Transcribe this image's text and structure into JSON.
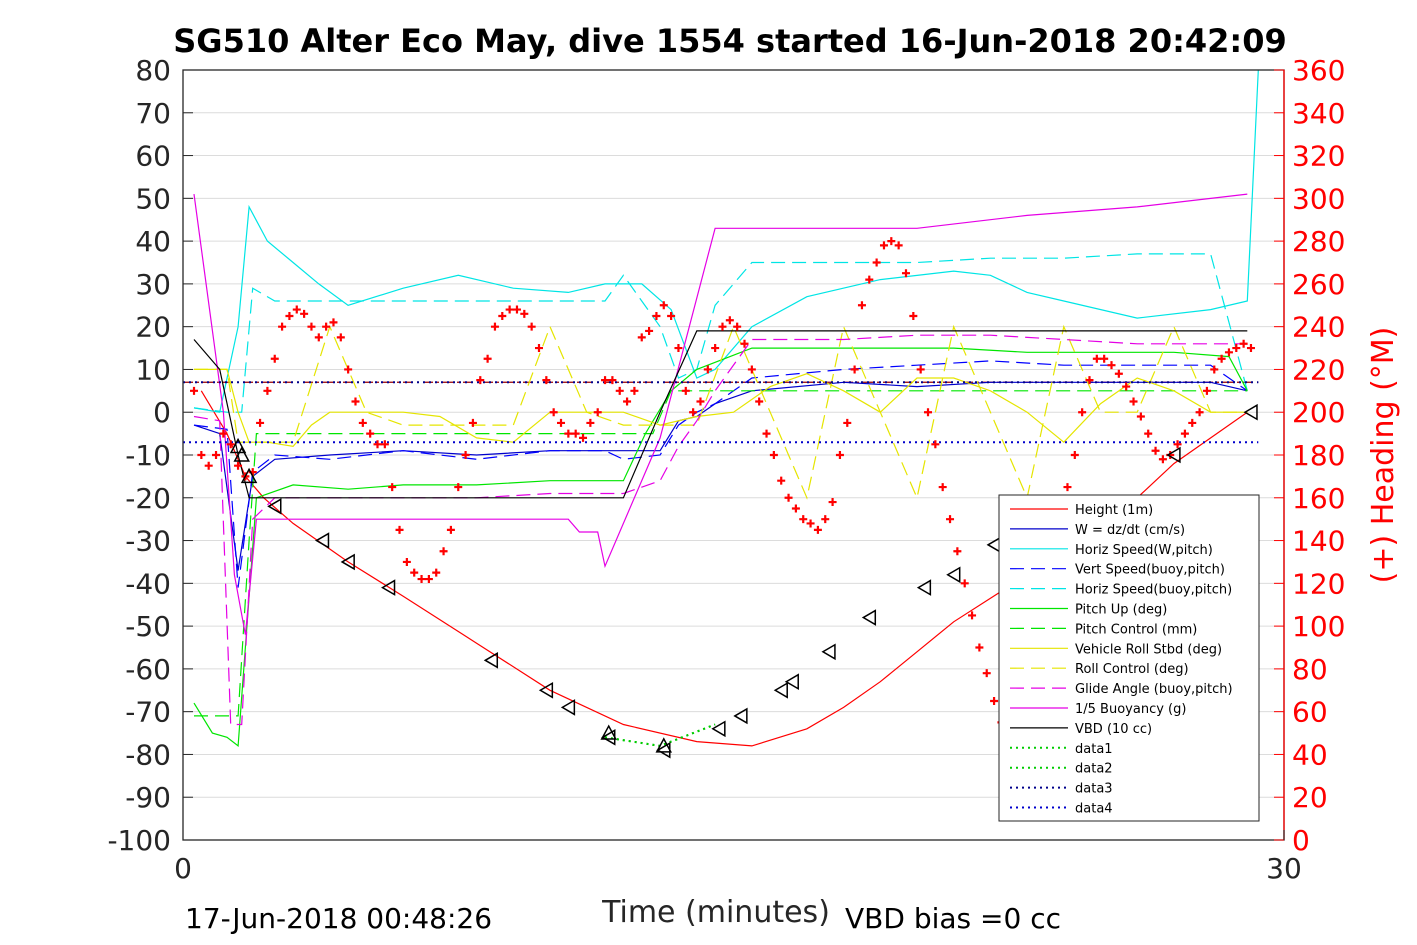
{
  "chart_data": {
    "type": "line",
    "title": "SG510 Alter Eco May, dive 1554 started 16-Jun-2018 20:42:09",
    "xlabel": "Time (minutes)",
    "ylabel_right": "(+) Heading (°M)",
    "xlim": [
      0,
      30
    ],
    "ylim": [
      -100,
      80
    ],
    "ylim_right": [
      0,
      360
    ],
    "x_ticks": [
      "0",
      "30"
    ],
    "y_ticks": [
      "80",
      "70",
      "60",
      "50",
      "40",
      "30",
      "20",
      "10",
      "0",
      "-10",
      "-20",
      "-30",
      "-40",
      "-50",
      "-60",
      "-70",
      "-80",
      "-90",
      "-100"
    ],
    "y_ticks_right": [
      "360",
      "340",
      "320",
      "300",
      "280",
      "260",
      "240",
      "220",
      "200",
      "180",
      "160",
      "140",
      "120",
      "100",
      "80",
      "60",
      "40",
      "20",
      "0"
    ],
    "footer_left": "17-Jun-2018 00:48:26",
    "footer_right": "VBD bias =0 cc",
    "grid": "horizontal",
    "legend_position": "bottom-right",
    "series": [
      {
        "name": "Height (1m)",
        "color": "#ff0000",
        "style": "solid",
        "x": [
          0.5,
          1.2,
          1.7,
          2.2,
          3.0,
          4.5,
          6.0,
          8.0,
          10.0,
          12.0,
          14.0,
          15.5,
          17.0,
          18.0,
          19.0,
          20.0,
          21.0,
          23.0,
          25.0,
          27.0,
          29.0
        ],
        "y": [
          5,
          -5,
          -15,
          -20,
          -26,
          -35,
          -43,
          -54,
          -65,
          -73,
          -77,
          -78,
          -74,
          -69,
          -63,
          -56,
          -49,
          -38,
          -28,
          -12,
          0
        ]
      },
      {
        "name": "W = dz/dt (cm/s)",
        "color": "#0000cc",
        "style": "solid",
        "x": [
          0.3,
          1.0,
          1.5,
          1.9,
          2.5,
          4.0,
          6.0,
          8.0,
          10.0,
          11.5,
          12.0,
          13.0,
          13.5,
          14.0,
          14.5,
          15.5,
          18.0,
          20.0,
          22.0,
          24.0,
          26.0,
          28.0,
          29.0
        ],
        "y": [
          -3,
          -5,
          -37,
          -15,
          -11,
          -10,
          -9,
          -10,
          -9,
          -9,
          -9,
          -9,
          -2,
          -1,
          2,
          5,
          7,
          6,
          7,
          7,
          7,
          7,
          5
        ]
      },
      {
        "name": "Horiz Speed(W,pitch)",
        "color": "#00e5e5",
        "style": "solid",
        "x": [
          0.3,
          1.0,
          1.5,
          1.8,
          2.3,
          3.0,
          3.7,
          4.5,
          6.0,
          7.5,
          9.0,
          10.5,
          11.5,
          12.5,
          13.3,
          14.0,
          14.5,
          15.5,
          17.0,
          19.0,
          21.0,
          22.0,
          23.0,
          24.0,
          26.0,
          28.0,
          29.0,
          29.3
        ],
        "y": [
          1,
          0,
          20,
          48,
          40,
          35,
          30,
          25,
          29,
          32,
          29,
          28,
          30,
          30,
          24,
          8,
          10,
          20,
          27,
          31,
          33,
          32,
          28,
          26,
          22,
          24,
          26,
          80
        ]
      },
      {
        "name": "Vert Speed(buoy,pitch)",
        "color": "#0000ff",
        "style": "dashed",
        "x": [
          0.3,
          1.2,
          1.5,
          1.9,
          2.5,
          4.0,
          6.0,
          8.0,
          10.0,
          11.5,
          12.0,
          13.0,
          13.5,
          14.0,
          14.5,
          15.5,
          18.0,
          20.0,
          22.0,
          24.0,
          26.0,
          28.0,
          29.0
        ],
        "y": [
          -3,
          -4,
          -41,
          -14,
          -10,
          -11,
          -9,
          -11,
          -9,
          -9,
          -11,
          -10,
          -3,
          0,
          2,
          8,
          10,
          11,
          12,
          11,
          11,
          11,
          5
        ]
      },
      {
        "name": "Horiz Speed(buoy,pitch)",
        "color": "#00e5e5",
        "style": "dashed",
        "x": [
          0.3,
          1.2,
          1.6,
          1.9,
          2.5,
          4.0,
          6.0,
          8.0,
          10.0,
          11.5,
          12.0,
          13.0,
          13.5,
          14.0,
          14.5,
          15.5,
          18.0,
          20.0,
          22.0,
          24.0,
          26.0,
          28.0,
          29.0
        ],
        "y": [
          1,
          0,
          0,
          29,
          26,
          26,
          26,
          26,
          26,
          26,
          32,
          20,
          8,
          10,
          25,
          35,
          35,
          35,
          36,
          36,
          37,
          37,
          5
        ]
      },
      {
        "name": "Pitch Up (deg)",
        "color": "#00e600",
        "style": "solid",
        "x": [
          0.3,
          0.8,
          1.2,
          1.5,
          2.0,
          3.0,
          4.5,
          6.0,
          8.0,
          10.0,
          11.5,
          12.0,
          12.6,
          13.3,
          14.0,
          15.5,
          17.0,
          19.0,
          21.0,
          23.0,
          25.0,
          27.0,
          28.5,
          29.0
        ],
        "y": [
          -68,
          -75,
          -76,
          -78,
          -20,
          -17,
          -18,
          -17,
          -17,
          -16,
          -16,
          -16,
          -5,
          5,
          10,
          15,
          15,
          15,
          15,
          14,
          14,
          14,
          13,
          5
        ]
      },
      {
        "name": "Pitch Control (mm)",
        "color": "#00e600",
        "style": "dashed",
        "x": [
          0.3,
          1.2,
          1.5,
          1.8,
          2.0,
          3.0,
          6.0,
          10.0,
          12.0,
          12.8,
          13.3,
          14.0,
          16.0,
          20.0,
          24.0,
          28.0,
          29.0
        ],
        "y": [
          -71,
          -71,
          -71,
          -30,
          -5,
          -5,
          -5,
          -5,
          -5,
          -5,
          5,
          5,
          5,
          5,
          5,
          5,
          5
        ]
      },
      {
        "name": "Vehicle Roll Stbd (deg)",
        "color": "#e5e500",
        "style": "solid",
        "x": [
          0.3,
          1.2,
          1.5,
          1.8,
          2.3,
          3.0,
          3.5,
          4.0,
          5.0,
          6.0,
          7.0,
          8.0,
          9.0,
          10.0,
          11.0,
          12.0,
          13.0,
          14.0,
          15.0,
          16.0,
          17.0,
          18.0,
          19.0,
          20.0,
          21.0,
          22.0,
          23.0,
          24.0,
          25.0,
          26.0,
          27.0,
          28.0,
          29.0
        ],
        "y": [
          10,
          10,
          0,
          -7,
          -7,
          -8,
          -3,
          0,
          0,
          0,
          -1,
          -6,
          -7,
          0,
          0,
          0,
          -3,
          -1,
          0,
          6,
          9,
          5,
          0,
          8,
          8,
          5,
          0,
          -7,
          2,
          8,
          5,
          0,
          0
        ]
      },
      {
        "name": "Roll Control (deg)",
        "color": "#e5e500",
        "style": "dashed",
        "x": [
          0.3,
          1.2,
          1.5,
          2.0,
          3.0,
          4.0,
          5.0,
          6.0,
          7.0,
          8.0,
          9.0,
          10.0,
          11.0,
          12.0,
          13.0,
          14.0,
          15.0,
          16.0,
          17.0,
          18.0,
          19.0,
          20.0,
          21.0,
          22.0,
          23.0,
          24.0,
          25.0,
          26.0,
          27.0,
          28.0,
          29.0
        ],
        "y": [
          10,
          10,
          -7,
          -7,
          -7,
          20,
          0,
          -3,
          -3,
          -3,
          -3,
          20,
          0,
          -3,
          -3,
          -3,
          20,
          0,
          -20,
          20,
          0,
          -20,
          20,
          0,
          -20,
          20,
          0,
          0,
          20,
          0,
          0
        ]
      },
      {
        "name": "Glide Angle (buoy,pitch)",
        "color": "#e500e5",
        "style": "dashed",
        "x": [
          0.3,
          1.0,
          1.3,
          1.6,
          1.9,
          2.5,
          4.0,
          6.0,
          8.0,
          10.0,
          11.5,
          12.0,
          13.0,
          13.5,
          14.0,
          14.5,
          15.5,
          18.0,
          20.0,
          22.0,
          24.0,
          26.0,
          28.0,
          29.0
        ],
        "y": [
          -1,
          -2,
          -73,
          -73,
          -25,
          -20,
          -20,
          -20,
          -20,
          -19,
          -19,
          -19,
          -16,
          -8,
          -2,
          5,
          17,
          17,
          18,
          18,
          17,
          16,
          16,
          16
        ]
      },
      {
        "name": "1/5 Buoyancy (g)",
        "color": "#e500e5",
        "style": "solid",
        "x": [
          0.3,
          1.1,
          1.4,
          1.7,
          2.0,
          3.0,
          5.0,
          8.0,
          9.0,
          10.5,
          10.8,
          11.3,
          11.5,
          13.0,
          14.5,
          15.5,
          17.0,
          20.0,
          23.0,
          26.0,
          29.0
        ],
        "y": [
          51,
          0,
          -38,
          -52,
          -25,
          -25,
          -25,
          -25,
          -25,
          -25,
          -28,
          -28,
          -36,
          -6,
          43,
          43,
          43,
          43,
          46,
          48,
          51
        ]
      },
      {
        "name": "VBD (10 cc)",
        "color": "#000000",
        "style": "solid",
        "x": [
          0.3,
          1.0,
          1.5,
          1.8,
          2.0,
          5.0,
          10.0,
          11.5,
          12.0,
          13.0,
          14.0,
          14.5,
          20.0,
          25.0,
          29.0
        ],
        "y": [
          17,
          10,
          -10,
          -20,
          -20,
          -20,
          -20,
          -20,
          -20,
          0,
          19,
          19,
          19,
          19,
          19
        ]
      },
      {
        "name": "data1",
        "color": "#00cc00",
        "style": "dotted",
        "x": [
          11.5,
          13.0,
          14.5
        ],
        "y": [
          -76,
          -78,
          -73
        ]
      },
      {
        "name": "data2",
        "color": "#00cc00",
        "style": "dotted",
        "x": [
          11.5,
          13.0,
          14.5
        ],
        "y": [
          -76,
          -78,
          -73
        ]
      },
      {
        "name": "data3",
        "color": "#00008b",
        "style": "dotted",
        "x": [
          0,
          29.3
        ],
        "y": [
          7,
          7
        ]
      },
      {
        "name": "data4",
        "color": "#0000cc",
        "style": "dotted",
        "x": [
          0,
          29.3
        ],
        "y": [
          -7,
          -7
        ]
      }
    ],
    "reference_lines": [
      {
        "color": "#990000",
        "style": "dashdot",
        "y": 7
      }
    ],
    "heading_points": {
      "color": "#ff0000",
      "marker": "+",
      "x": [
        0.3,
        0.5,
        0.7,
        0.9,
        1.1,
        1.3,
        1.5,
        1.7,
        1.9,
        2.1,
        2.3,
        2.5,
        2.7,
        2.9,
        3.1,
        3.3,
        3.5,
        3.7,
        3.9,
        4.1,
        4.3,
        4.5,
        4.7,
        4.9,
        5.1,
        5.3,
        5.5,
        5.7,
        5.9,
        6.1,
        6.3,
        6.5,
        6.7,
        6.9,
        7.1,
        7.3,
        7.5,
        7.7,
        7.9,
        8.1,
        8.3,
        8.5,
        8.7,
        8.9,
        9.1,
        9.3,
        9.5,
        9.7,
        9.9,
        10.1,
        10.3,
        10.5,
        10.7,
        10.9,
        11.1,
        11.3,
        11.5,
        11.7,
        11.9,
        12.1,
        12.3,
        12.5,
        12.7,
        12.9,
        13.1,
        13.3,
        13.5,
        13.7,
        13.9,
        14.1,
        14.3,
        14.5,
        14.7,
        14.9,
        15.1,
        15.3,
        15.5,
        15.7,
        15.9,
        16.1,
        16.3,
        16.5,
        16.7,
        16.9,
        17.1,
        17.3,
        17.5,
        17.7,
        17.9,
        18.1,
        18.3,
        18.5,
        18.7,
        18.9,
        19.1,
        19.3,
        19.5,
        19.7,
        19.9,
        20.1,
        20.3,
        20.5,
        20.7,
        20.9,
        21.1,
        21.3,
        21.5,
        21.7,
        21.9,
        22.1,
        22.3,
        22.5,
        22.7,
        22.9,
        23.1,
        23.3,
        23.5,
        23.7,
        23.9,
        24.1,
        24.3,
        24.5,
        24.7,
        24.9,
        25.1,
        25.3,
        25.5,
        25.7,
        25.9,
        26.1,
        26.3,
        26.5,
        26.7,
        26.9,
        27.1,
        27.3,
        27.5,
        27.7,
        27.9,
        28.1,
        28.3,
        28.5,
        28.7,
        28.9,
        29.1
      ],
      "y": [
        210,
        180,
        175,
        180,
        190,
        185,
        175,
        170,
        172,
        195,
        210,
        225,
        240,
        245,
        248,
        246,
        240,
        235,
        240,
        242,
        235,
        220,
        205,
        195,
        190,
        185,
        185,
        165,
        145,
        130,
        125,
        122,
        122,
        125,
        135,
        145,
        165,
        180,
        195,
        215,
        225,
        240,
        245,
        248,
        248,
        246,
        240,
        230,
        215,
        200,
        195,
        190,
        190,
        188,
        195,
        200,
        215,
        215,
        210,
        205,
        210,
        235,
        238,
        245,
        250,
        245,
        230,
        210,
        200,
        205,
        220,
        230,
        240,
        243,
        240,
        232,
        220,
        205,
        190,
        180,
        168,
        160,
        155,
        150,
        148,
        145,
        150,
        158,
        180,
        195,
        220,
        250,
        262,
        270,
        278,
        280,
        278,
        265,
        245,
        220,
        200,
        185,
        165,
        150,
        135,
        120,
        105,
        90,
        78,
        65,
        55,
        50,
        45,
        60,
        75,
        95,
        110,
        130,
        150,
        165,
        180,
        200,
        215,
        225,
        225,
        222,
        218,
        212,
        205,
        198,
        190,
        182,
        178,
        180,
        185,
        190,
        195,
        200,
        210,
        220,
        225,
        228,
        230,
        232,
        230
      ]
    },
    "triangle_markers": {
      "color": "#000000",
      "left_x": [
        2.5,
        3.8,
        4.5,
        5.6,
        8.4,
        9.9,
        10.5,
        11.6,
        13.1,
        14.6,
        15.2,
        16.3,
        16.6,
        17.6,
        18.7,
        20.2,
        21.0,
        22.1,
        27.0,
        29.1
      ],
      "left_y": [
        -22,
        -30,
        -35,
        -41,
        -58,
        -65,
        -69,
        -76,
        -79,
        -74,
        -71,
        -65,
        -63,
        -56,
        -48,
        -41,
        -38,
        -31,
        -10,
        0
      ],
      "up_x": [
        1.5,
        1.6,
        1.8,
        11.6,
        13.1
      ],
      "up_y": [
        -8,
        -10,
        -15,
        -75,
        -78
      ]
    }
  }
}
